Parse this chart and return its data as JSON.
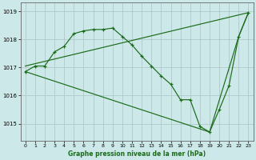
{
  "title": "Graphe pression niveau de la mer (hPa)",
  "bg_color": "#cce8e8",
  "line_color": "#1a6b1a",
  "grid_color": "#b0c8c8",
  "xlim": [
    -0.5,
    23.5
  ],
  "ylim": [
    1014.4,
    1019.3
  ],
  "yticks": [
    1015,
    1016,
    1017,
    1018,
    1019
  ],
  "xticks": [
    0,
    1,
    2,
    3,
    4,
    5,
    6,
    7,
    8,
    9,
    10,
    11,
    12,
    13,
    14,
    15,
    16,
    17,
    18,
    19,
    20,
    21,
    22,
    23
  ],
  "line1_x": [
    0,
    1,
    2,
    3,
    4,
    5,
    6,
    7,
    8,
    9,
    10,
    11,
    12,
    13,
    14,
    15,
    16,
    17,
    18,
    19,
    20,
    21,
    22,
    23
  ],
  "line1_y": [
    1016.85,
    1017.05,
    1017.05,
    1017.55,
    1017.75,
    1018.2,
    1018.3,
    1018.35,
    1018.35,
    1018.4,
    1018.1,
    1017.8,
    1017.4,
    1017.05,
    1016.7,
    1016.4,
    1015.85,
    1015.85,
    1014.9,
    1014.7,
    1015.5,
    1016.35,
    1018.1,
    1018.95
  ],
  "line2_x": [
    0,
    23
  ],
  "line2_y": [
    1017.05,
    1018.95
  ],
  "line3_x": [
    0,
    19,
    22,
    23
  ],
  "line3_y": [
    1016.85,
    1014.7,
    1018.1,
    1018.95
  ]
}
